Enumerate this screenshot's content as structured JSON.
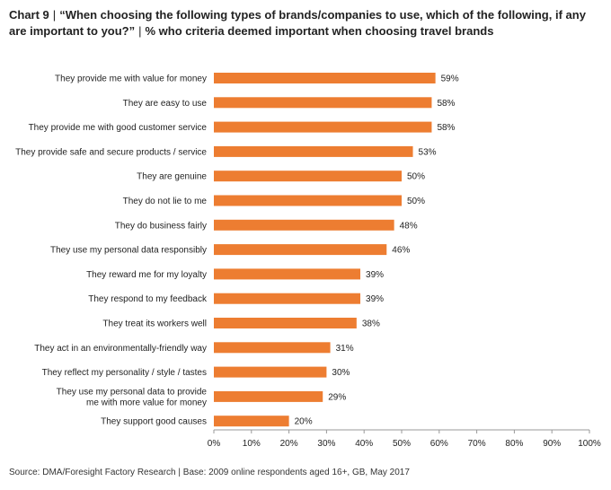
{
  "header": {
    "chart_number": "Chart 9",
    "question": "“When choosing the following types of brands/companies to use, which of the following, if any are important to you?”",
    "subtitle": "% who criteria deemed important when choosing travel brands"
  },
  "footer": {
    "source": "Source: DMA/Foresight Factory Research | Base: 2009 online respondents aged 16+, GB, May 2017"
  },
  "colors": {
    "bar": "#ED7D31",
    "axis": "#999999"
  },
  "chart_data": {
    "type": "bar",
    "orientation": "horizontal",
    "title": "Chart 9 | “When choosing the following types of brands/companies to use, which of the following, if any are important to you?” | % who criteria deemed important when choosing travel brands",
    "xlabel": "",
    "ylabel": "",
    "xlim": [
      0,
      100
    ],
    "x_ticks": [
      "0%",
      "10%",
      "20%",
      "30%",
      "40%",
      "50%",
      "60%",
      "70%",
      "80%",
      "90%",
      "100%"
    ],
    "grid": false,
    "legend": "none",
    "value_suffix": "%",
    "categories": [
      [
        "They provide me with value for money"
      ],
      [
        "They are easy to use"
      ],
      [
        "They provide me with good customer service"
      ],
      [
        "They provide safe and secure products / service"
      ],
      [
        "They are genuine"
      ],
      [
        "They do not lie to me"
      ],
      [
        "They do business fairly"
      ],
      [
        "They use my personal data responsibly"
      ],
      [
        "They reward me for my loyalty"
      ],
      [
        "They respond to my feedback"
      ],
      [
        "They treat its workers well"
      ],
      [
        "They act in an environmentally-friendly way"
      ],
      [
        "They reflect my personality / style / tastes"
      ],
      [
        "They use my personal data to provide",
        "me with more value for money"
      ],
      [
        "They support good causes"
      ]
    ],
    "values": [
      59,
      58,
      58,
      53,
      50,
      50,
      48,
      46,
      39,
      39,
      38,
      31,
      30,
      29,
      20
    ]
  }
}
